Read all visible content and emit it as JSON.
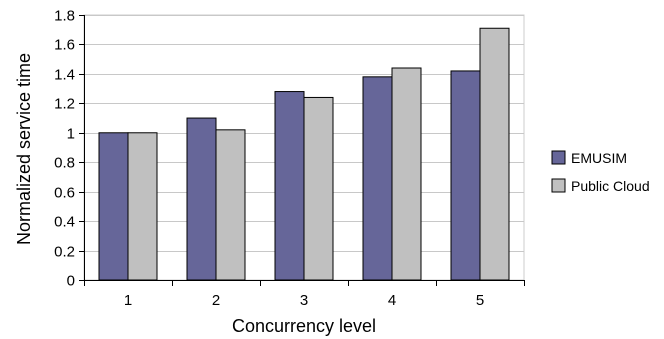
{
  "chart_data": {
    "type": "bar",
    "xlabel": "Concurrency level",
    "ylabel": "Normalized service time",
    "categories": [
      "1",
      "2",
      "3",
      "4",
      "5"
    ],
    "ylim": [
      0,
      1.8
    ],
    "yticks": [
      "0",
      "0.2",
      "0.4",
      "0.6",
      "0.8",
      "1",
      "1.2",
      "1.4",
      "1.6",
      "1.8"
    ],
    "grid": true,
    "legend_position": "right",
    "series": [
      {
        "name": "EMUSIM",
        "color": "#666699",
        "values": [
          1.0,
          1.1,
          1.28,
          1.38,
          1.42
        ]
      },
      {
        "name": "Public Cloud",
        "color": "#c0c0c0",
        "values": [
          1.0,
          1.02,
          1.24,
          1.44,
          1.71
        ]
      }
    ]
  }
}
